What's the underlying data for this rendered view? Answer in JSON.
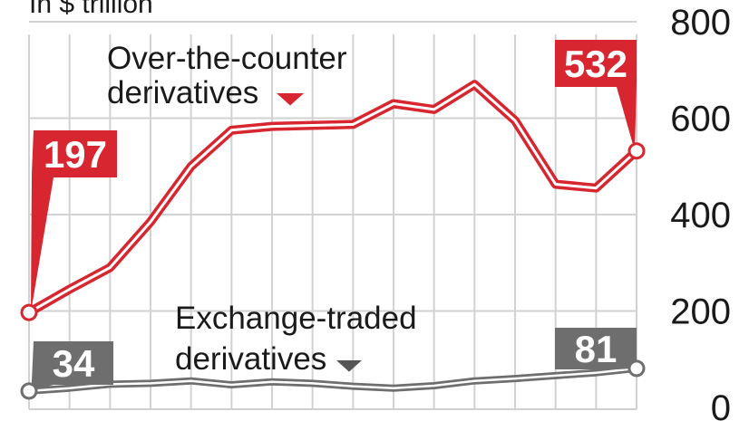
{
  "chart_data": {
    "type": "line",
    "unit": "In $ trillion",
    "ylim": [
      0,
      800
    ],
    "y_ticks": [
      "0",
      "200",
      "400",
      "600",
      "800"
    ],
    "grid": true,
    "series": [
      {
        "name": "Over-the-counter derivatives",
        "label_lines": [
          "Over-the-counter",
          "derivatives"
        ],
        "color": "#d7262f",
        "values": [
          197,
          245,
          290,
          385,
          500,
          575,
          583,
          585,
          587,
          630,
          618,
          670,
          595,
          463,
          455,
          532
        ]
      },
      {
        "name": "Exchange-traded derivatives",
        "label_lines": [
          "Exchange-traded",
          "derivatives"
        ],
        "color": "#6e6e6e",
        "values": [
          34,
          40,
          48,
          50,
          55,
          47,
          53,
          50,
          44,
          40,
          45,
          55,
          60,
          66,
          72,
          81
        ]
      }
    ],
    "callouts": [
      {
        "series": 0,
        "point": "first",
        "text": "197"
      },
      {
        "series": 0,
        "point": "last",
        "text": "532"
      },
      {
        "series": 1,
        "point": "first",
        "text": "34"
      },
      {
        "series": 1,
        "point": "last",
        "text": "81"
      }
    ]
  }
}
